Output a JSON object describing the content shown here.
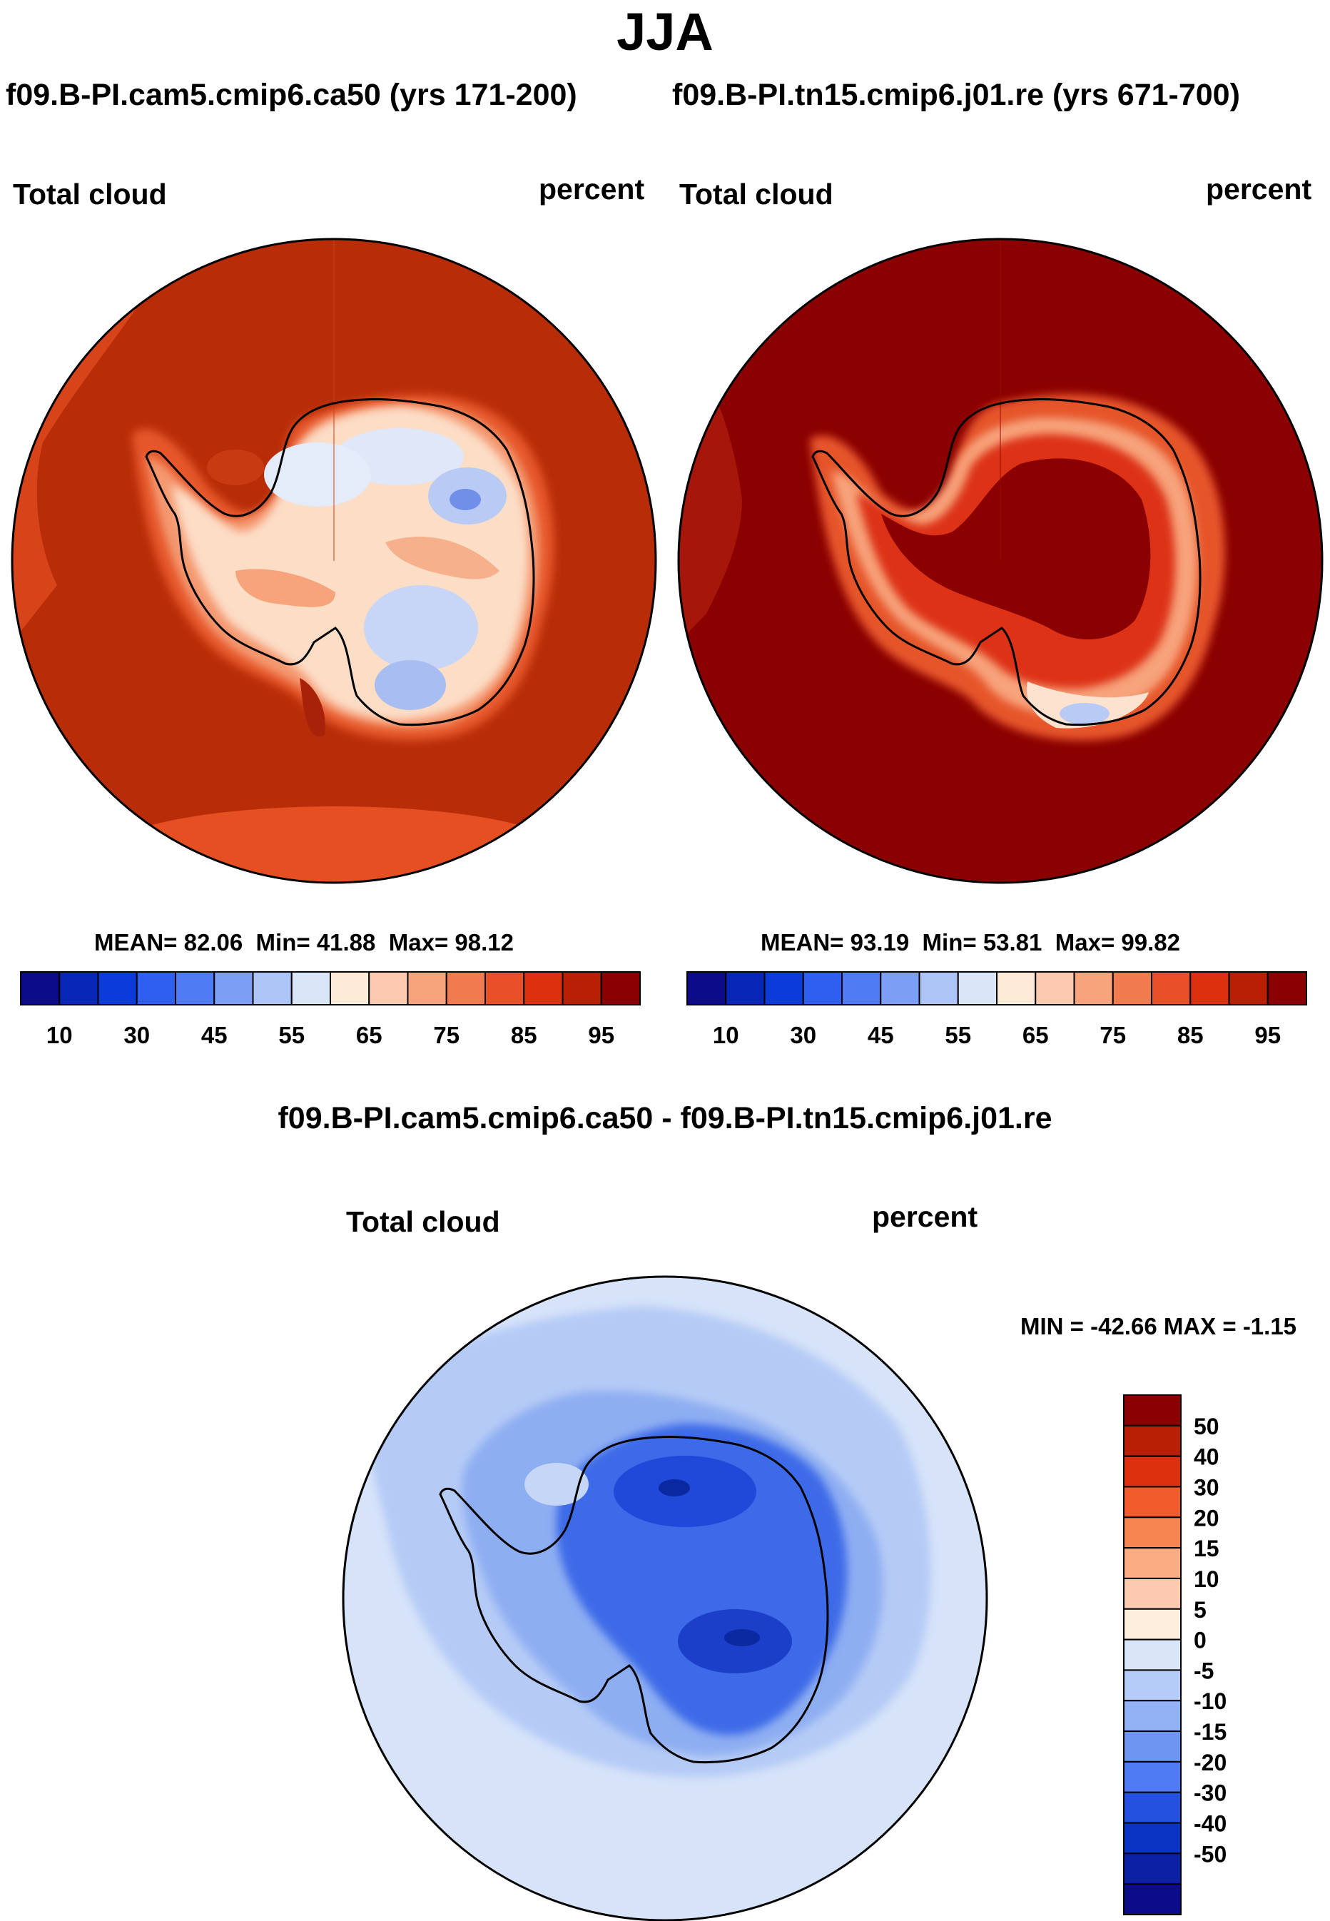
{
  "title": "JJA",
  "cases": {
    "left": "f09.B-PI.cam5.cmip6.ca50 (yrs 171-200)",
    "right": "f09.B-PI.tn15.cmip6.j01.re (yrs 671-700)"
  },
  "difference_title": "f09.B-PI.cam5.cmip6.ca50 - f09.B-PI.tn15.cmip6.j01.re",
  "chart_data": [
    {
      "type": "heatmap",
      "projection": "south polar stereographic",
      "variable": "Total cloud",
      "units": "percent",
      "stats": {
        "mean_label": "MEAN=",
        "mean": "82.06",
        "min_label": "Min=",
        "min": "41.88",
        "max_label": "Max=",
        "max": "98.12"
      },
      "colorbar": {
        "orientation": "horizontal",
        "colors": [
          "#0c0b8a",
          "#0827b9",
          "#0b3cd9",
          "#2e5ff0",
          "#4f7cf4",
          "#7c9ff5",
          "#adc4f7",
          "#d9e6f8",
          "#fdebd8",
          "#fbcab0",
          "#f7a37b",
          "#f17a4e",
          "#e9502a",
          "#dd300f",
          "#b81f05",
          "#8b0000"
        ],
        "tick_labels": [
          "10",
          "30",
          "45",
          "55",
          "65",
          "75",
          "85",
          "95"
        ]
      },
      "description_values": {
        "ocean_typical": 85,
        "ice_sheet_interior": 55
      }
    },
    {
      "type": "heatmap",
      "projection": "south polar stereographic",
      "variable": "Total cloud",
      "units": "percent",
      "stats": {
        "mean_label": "MEAN=",
        "mean": "93.19",
        "min_label": "Min=",
        "min": "53.81",
        "max_label": "Max=",
        "max": "99.82"
      },
      "colorbar": {
        "orientation": "horizontal",
        "colors": [
          "#0c0b8a",
          "#0827b9",
          "#0b3cd9",
          "#2e5ff0",
          "#4f7cf4",
          "#7c9ff5",
          "#adc4f7",
          "#d9e6f8",
          "#fdebd8",
          "#fbcab0",
          "#f7a37b",
          "#f17a4e",
          "#e9502a",
          "#dd300f",
          "#b81f05",
          "#8b0000"
        ],
        "tick_labels": [
          "10",
          "30",
          "45",
          "55",
          "65",
          "75",
          "85",
          "95"
        ]
      },
      "description_values": {
        "ocean_typical": 97,
        "ice_sheet_interior": 95
      }
    },
    {
      "type": "heatmap",
      "projection": "south polar stereographic",
      "variable": "Total cloud",
      "units": "percent",
      "stats": {
        "min_label": "MIN =",
        "min": "-42.66",
        "max_label": "MAX =",
        "max": "-1.15"
      },
      "colorbar": {
        "orientation": "vertical",
        "colors": [
          "#8b0000",
          "#b81f05",
          "#dd300f",
          "#f15a2a",
          "#f58450",
          "#f9ab82",
          "#fbcab0",
          "#fdeedd",
          "#d9e6f8",
          "#b4ccf7",
          "#93b2f5",
          "#6f95f3",
          "#4f7cf4",
          "#2451e0",
          "#0a34c4",
          "#0a1fa3",
          "#0c0b8a"
        ],
        "tick_labels": [
          "50",
          "40",
          "30",
          "20",
          "15",
          "10",
          "5",
          "0",
          "-5",
          "-10",
          "-15",
          "-20",
          "-30",
          "-40",
          "-50"
        ]
      }
    }
  ]
}
